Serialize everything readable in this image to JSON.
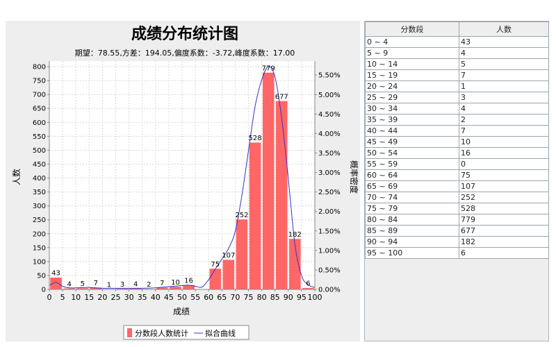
{
  "chart_data": {
    "type": "bar",
    "title": "成绩分布统计图",
    "subtitle": "期望：78.55,方差：194.05,偏度系数：-3.72,峰度系数：17.00",
    "xlabel": "成绩",
    "ylabel": "人数",
    "y2label": "概率密度",
    "x_ticks": [
      "0",
      "5",
      "10",
      "15",
      "20",
      "25",
      "30",
      "35",
      "40",
      "45",
      "50",
      "55",
      "60",
      "65",
      "70",
      "75",
      "80",
      "85",
      "90",
      "95",
      "100"
    ],
    "y_ticks": [
      0,
      50,
      100,
      150,
      200,
      250,
      300,
      350,
      400,
      450,
      500,
      550,
      600,
      650,
      700,
      750,
      800
    ],
    "y2_ticks": [
      "0.00%",
      "0.50%",
      "1.00%",
      "1.50%",
      "2.00%",
      "2.50%",
      "3.00%",
      "3.50%",
      "4.00%",
      "4.50%",
      "5.00%",
      "5.50%"
    ],
    "xlim": [
      0,
      100
    ],
    "ylim": [
      0,
      820
    ],
    "y2lim": [
      0,
      5.86
    ],
    "grid": true,
    "bars": [
      {
        "start": 0,
        "end": 5,
        "value": 43
      },
      {
        "start": 5,
        "end": 10,
        "value": 4
      },
      {
        "start": 10,
        "end": 15,
        "value": 5
      },
      {
        "start": 15,
        "end": 20,
        "value": 7
      },
      {
        "start": 20,
        "end": 25,
        "value": 1
      },
      {
        "start": 25,
        "end": 30,
        "value": 3
      },
      {
        "start": 30,
        "end": 35,
        "value": 4
      },
      {
        "start": 35,
        "end": 40,
        "value": 2
      },
      {
        "start": 40,
        "end": 45,
        "value": 7
      },
      {
        "start": 45,
        "end": 50,
        "value": 10
      },
      {
        "start": 50,
        "end": 55,
        "value": 16
      },
      {
        "start": 55,
        "end": 60,
        "value": 0
      },
      {
        "start": 60,
        "end": 65,
        "value": 75
      },
      {
        "start": 65,
        "end": 70,
        "value": 107
      },
      {
        "start": 70,
        "end": 75,
        "value": 252
      },
      {
        "start": 75,
        "end": 80,
        "value": 528
      },
      {
        "start": 80,
        "end": 85,
        "value": 779
      },
      {
        "start": 85,
        "end": 90,
        "value": 677
      },
      {
        "start": 90,
        "end": 95,
        "value": 182
      },
      {
        "start": 95,
        "end": 100,
        "value": 6
      }
    ],
    "curve": {
      "x": [
        0,
        2.5,
        5,
        7.5,
        10,
        15,
        20,
        25,
        30,
        35,
        40,
        45,
        50,
        52.5,
        55,
        57.5,
        60,
        62.5,
        65,
        67.5,
        70,
        72.5,
        75,
        77.5,
        80,
        82.5,
        85,
        87.5,
        90,
        92.5,
        95,
        97.5,
        100
      ],
      "y": [
        0.1,
        0.18,
        0.08,
        0.04,
        0.04,
        0.05,
        0.03,
        0.03,
        0.03,
        0.03,
        0.04,
        0.07,
        0.1,
        0.11,
        0.08,
        0.06,
        0.25,
        0.52,
        0.78,
        1.05,
        1.48,
        2.4,
        3.56,
        4.7,
        5.38,
        5.72,
        5.45,
        4.4,
        2.85,
        1.15,
        0.35,
        0.12,
        0.05
      ]
    },
    "legend": [
      "分数段人数统计",
      "拟合曲线"
    ],
    "legend_position": "bottom-center",
    "colors": {
      "bar": "#ff6666",
      "curve": "#3333cc",
      "grid": "#d8d8d8"
    }
  },
  "table": {
    "headers": [
      "分数段",
      "人数"
    ],
    "rows": [
      [
        "0 ~ 4",
        "43"
      ],
      [
        "5 ~ 9",
        "4"
      ],
      [
        "10 ~ 14",
        "5"
      ],
      [
        "15 ~ 19",
        "7"
      ],
      [
        "20 ~ 24",
        "1"
      ],
      [
        "25 ~ 29",
        "3"
      ],
      [
        "30 ~ 34",
        "4"
      ],
      [
        "35 ~ 39",
        "2"
      ],
      [
        "40 ~ 44",
        "7"
      ],
      [
        "45 ~ 49",
        "10"
      ],
      [
        "50 ~ 54",
        "16"
      ],
      [
        "55 ~ 59",
        "0"
      ],
      [
        "60 ~ 64",
        "75"
      ],
      [
        "65 ~ 69",
        "107"
      ],
      [
        "70 ~ 74",
        "252"
      ],
      [
        "75 ~ 79",
        "528"
      ],
      [
        "80 ~ 84",
        "779"
      ],
      [
        "85 ~ 89",
        "677"
      ],
      [
        "90 ~ 94",
        "182"
      ],
      [
        "95 ~ 100",
        "6"
      ]
    ]
  }
}
